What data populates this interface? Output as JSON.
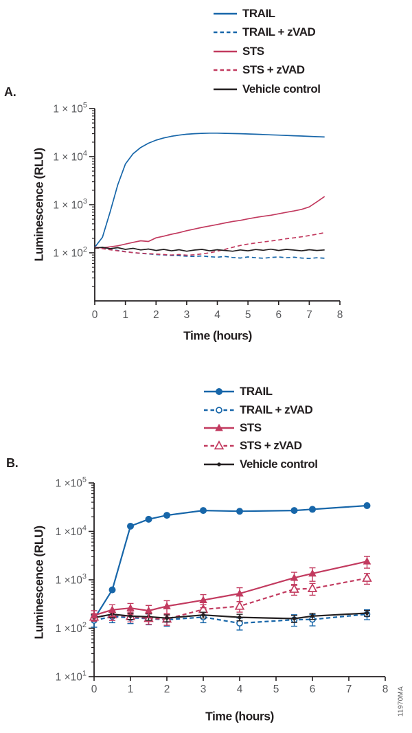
{
  "watermark": "11970MA",
  "colors": {
    "blue": "#1766a9",
    "red": "#c23a5f",
    "black": "#231f20",
    "axis": "#231f20",
    "tick_text": "#57585b"
  },
  "chart_data": [
    {
      "type": "line",
      "panel_label": "A.",
      "xlabel": "Time (hours)",
      "ylabel": "Luminescence (RLU)",
      "xlim": [
        0,
        8
      ],
      "xticks": [
        0,
        1,
        2,
        3,
        4,
        5,
        6,
        7,
        8
      ],
      "ylim": [
        10,
        100000
      ],
      "yscale": "log",
      "ytick_exponents": [
        2,
        3,
        4,
        5
      ],
      "ytick_label_base": "1 × 10",
      "legend_position": "top-right",
      "grid": false,
      "x": [
        0,
        0.25,
        0.5,
        0.75,
        1,
        1.25,
        1.5,
        1.75,
        2,
        2.25,
        2.5,
        2.75,
        3,
        3.25,
        3.5,
        3.75,
        4,
        4.25,
        4.5,
        4.75,
        5,
        5.25,
        5.5,
        5.75,
        6,
        6.25,
        6.5,
        6.75,
        7,
        7.25,
        7.5
      ],
      "series": [
        {
          "name": "TRAIL",
          "color": "#1766a9",
          "dash": false,
          "marker": "none",
          "values": [
            130,
            210,
            700,
            2600,
            7000,
            11500,
            15500,
            19000,
            22000,
            24500,
            26500,
            28000,
            29200,
            30000,
            30500,
            30800,
            30800,
            30500,
            30200,
            30000,
            29600,
            29200,
            28800,
            28400,
            28000,
            27600,
            27200,
            26800,
            26400,
            26000,
            25600
          ]
        },
        {
          "name": "TRAIL + zVAD",
          "color": "#1766a9",
          "dash": true,
          "marker": "none",
          "values": [
            130,
            124,
            118,
            112,
            106,
            101,
            97,
            95,
            92,
            90,
            88,
            87,
            85,
            84,
            86,
            83,
            81,
            84,
            80,
            78,
            82,
            79,
            77,
            80,
            82,
            79,
            81,
            78,
            76,
            79,
            77
          ]
        },
        {
          "name": "STS",
          "color": "#c23a5f",
          "dash": false,
          "marker": "none",
          "values": [
            130,
            127,
            133,
            140,
            152,
            165,
            178,
            172,
            205,
            222,
            243,
            262,
            288,
            312,
            338,
            362,
            388,
            418,
            448,
            472,
            508,
            542,
            575,
            605,
            648,
            695,
            742,
            800,
            900,
            1150,
            1480
          ]
        },
        {
          "name": "STS + zVAD",
          "color": "#c23a5f",
          "dash": true,
          "marker": "none",
          "values": [
            128,
            122,
            116,
            110,
            105,
            101,
            98,
            96,
            94,
            92,
            90,
            92,
            89,
            91,
            95,
            100,
            108,
            118,
            130,
            142,
            152,
            160,
            168,
            176,
            185,
            196,
            205,
            215,
            228,
            244,
            262
          ]
        },
        {
          "name": "Vehicle control",
          "color": "#231f20",
          "dash": false,
          "marker": "none",
          "values": [
            125,
            130,
            122,
            128,
            118,
            124,
            115,
            120,
            112,
            118,
            110,
            116,
            108,
            114,
            118,
            110,
            116,
            112,
            108,
            115,
            110,
            117,
            113,
            119,
            112,
            118,
            114,
            110,
            116,
            112,
            115
          ]
        }
      ],
      "z_order": [
        0,
        1,
        3,
        2,
        4
      ]
    },
    {
      "type": "line",
      "panel_label": "B.",
      "xlabel": "Time (hours)",
      "ylabel": "Luminescence (RLU)",
      "xlim": [
        0,
        8
      ],
      "xticks": [
        0,
        1,
        2,
        3,
        4,
        5,
        6,
        7,
        8
      ],
      "ylim": [
        10,
        100000
      ],
      "yscale": "log",
      "ytick_exponents": [
        1,
        2,
        3,
        4,
        5
      ],
      "ytick_label_base": "1 ×10",
      "legend_position": "top-right",
      "grid": false,
      "x": [
        0,
        0.5,
        1,
        1.5,
        2,
        3,
        4,
        5.5,
        6,
        7.5
      ],
      "series": [
        {
          "name": "TRAIL",
          "color": "#1766a9",
          "dash": false,
          "marker": "circle",
          "values": [
            155,
            620,
            12800,
            17800,
            21500,
            27000,
            26000,
            27000,
            28500,
            34000
          ],
          "errors": null
        },
        {
          "name": "TRAIL + zVAD",
          "color": "#1766a9",
          "dash": true,
          "marker": "circle-open",
          "values": [
            145,
            175,
            165,
            158,
            150,
            170,
            127,
            150,
            152,
            195
          ],
          "errors": [
            40,
            45,
            40,
            40,
            40,
            40,
            35,
            40,
            40,
            45
          ]
        },
        {
          "name": "STS",
          "color": "#c23a5f",
          "dash": false,
          "marker": "triangle",
          "values": [
            185,
            240,
            260,
            230,
            285,
            380,
            520,
            1100,
            1350,
            2400
          ],
          "errors": [
            45,
            65,
            65,
            65,
            85,
            115,
            165,
            330,
            420,
            660
          ]
        },
        {
          "name": "STS + zVAD",
          "color": "#c23a5f",
          "dash": true,
          "marker": "triangle-open",
          "values": [
            170,
            190,
            175,
            160,
            155,
            245,
            285,
            640,
            660,
            1080
          ],
          "errors": [
            30,
            45,
            40,
            40,
            40,
            60,
            70,
            160,
            180,
            270
          ]
        },
        {
          "name": "Vehicle control",
          "color": "#231f20",
          "dash": false,
          "marker": "dot",
          "values": [
            165,
            195,
            178,
            172,
            162,
            188,
            168,
            158,
            178,
            205
          ],
          "errors": [
            25,
            28,
            26,
            26,
            26,
            26,
            26,
            26,
            26,
            28
          ]
        }
      ],
      "z_order": [
        0,
        1,
        3,
        4,
        2
      ]
    }
  ]
}
